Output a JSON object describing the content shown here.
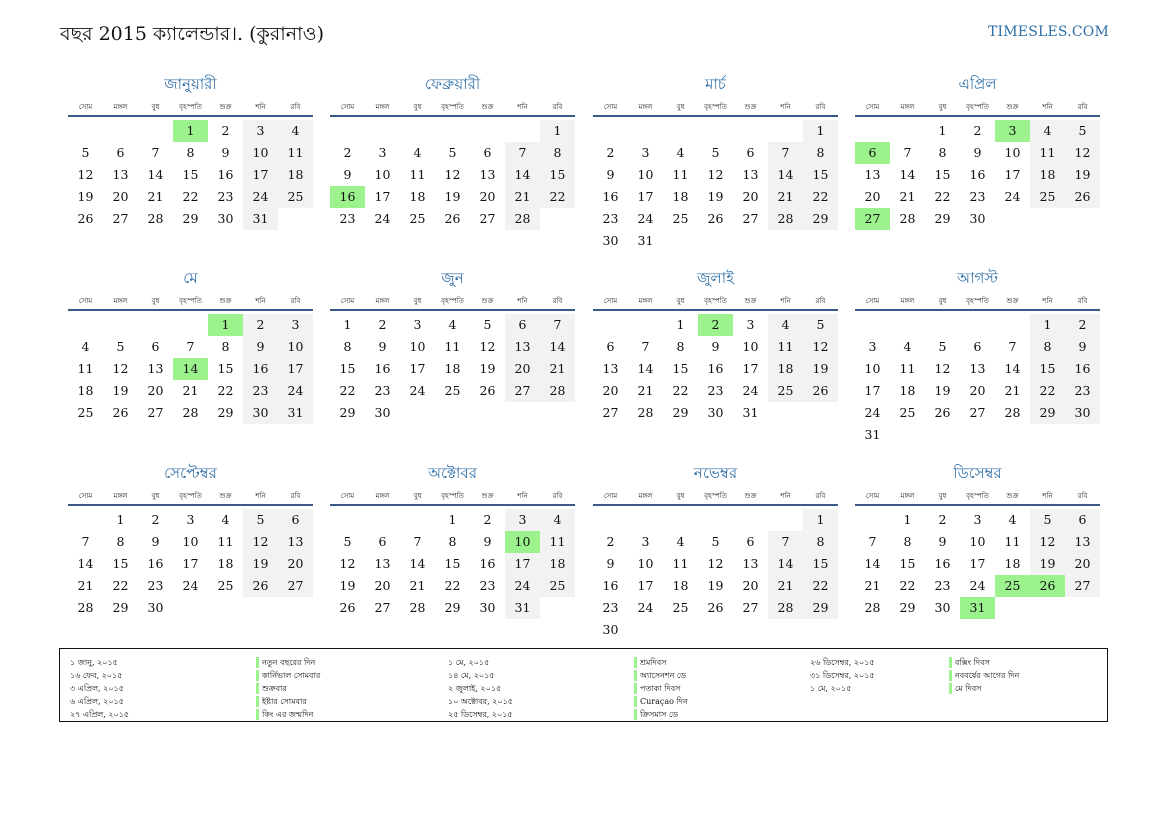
{
  "header": {
    "title": "বছর 2015 ক্যালেন্ডার।. (কুরানাও)",
    "brand": "TIMESLES.COM"
  },
  "weekdays": [
    "সোম",
    "মঙ্গল",
    "বুধ",
    "বৃহস্পতি",
    "শুক্র",
    "শনি",
    "রবি"
  ],
  "months": [
    {
      "name": "জানুয়ারী",
      "offset": 3,
      "days": 31,
      "holidays": [
        1
      ]
    },
    {
      "name": "ফেব্রুয়ারী",
      "offset": 6,
      "days": 28,
      "holidays": [
        16
      ]
    },
    {
      "name": "মার্চ",
      "offset": 6,
      "days": 31,
      "holidays": []
    },
    {
      "name": "এপ্রিল",
      "offset": 2,
      "days": 30,
      "holidays": [
        3,
        6,
        27
      ]
    },
    {
      "name": "মে",
      "offset": 4,
      "days": 31,
      "holidays": [
        1,
        14
      ]
    },
    {
      "name": "জুন",
      "offset": 0,
      "days": 30,
      "holidays": []
    },
    {
      "name": "জুলাই",
      "offset": 2,
      "days": 31,
      "holidays": [
        2
      ]
    },
    {
      "name": "আগস্ট",
      "offset": 5,
      "days": 31,
      "holidays": []
    },
    {
      "name": "সেপ্টেম্বর",
      "offset": 1,
      "days": 30,
      "holidays": []
    },
    {
      "name": "অক্টোবর",
      "offset": 3,
      "days": 31,
      "holidays": [
        10
      ]
    },
    {
      "name": "নভেম্বর",
      "offset": 6,
      "days": 30,
      "holidays": []
    },
    {
      "name": "ডিসেম্বর",
      "offset": 1,
      "days": 31,
      "holidays": [
        25,
        26,
        31
      ]
    }
  ],
  "legend": [
    {
      "date": "১ জানু, ২০১৫",
      "name": "নতুন বছরের দিন"
    },
    {
      "date": "১৬ ফেব, ২০১৫",
      "name": "কার্নিভাল সোমবার"
    },
    {
      "date": "৩ এপ্রিল, ২০১৫",
      "name": "শুক্রবার"
    },
    {
      "date": "৬ এপ্রিল, ২০১৫",
      "name": "ইষ্টার সোমবার"
    },
    {
      "date": "২৭ এপ্রিল, ২০১৫",
      "name": "কিং এর জন্মদিন"
    },
    {
      "date": "১ মে, ২০১৫",
      "name": "শ্রমদিবস"
    },
    {
      "date": "১৪ মে, ২০১৫",
      "name": "অ্যাসেনশন ডে"
    },
    {
      "date": "২ জুলাই, ২০১৫",
      "name": "পতাকা দিবস"
    },
    {
      "date": "১০ অক্টোবর, ২০১৫",
      "name": "Curaçao দিন"
    },
    {
      "date": "২৫ ডিসেম্বর, ২০১৫",
      "name": "ক্রিসমাস ডে"
    },
    {
      "date": "২৬ ডিসেম্বর, ২০১৫",
      "name": "বক্সিং দিবস"
    },
    {
      "date": "৩১ ডিসেম্বর, ২০১৫",
      "name": "নববর্ষের আগের দিন"
    },
    {
      "date": "১ মে, ২০১৫",
      "name": "মে দিবস"
    }
  ]
}
